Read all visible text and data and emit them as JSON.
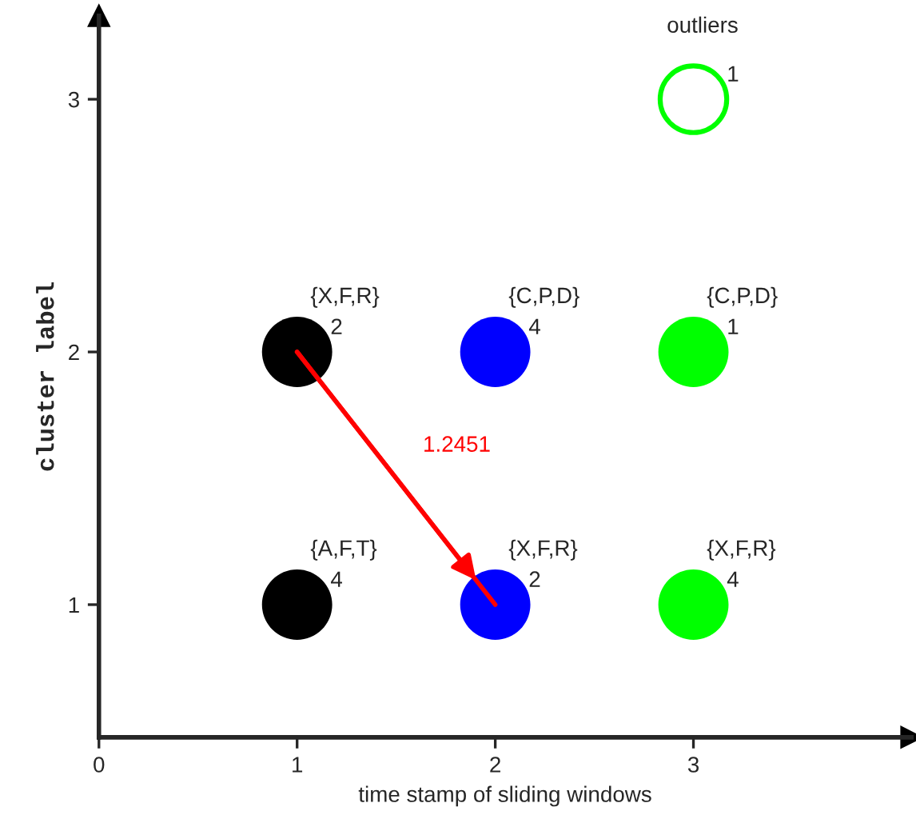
{
  "chart_data": {
    "type": "scatter",
    "xlabel": "time stamp of sliding windows",
    "ylabel": "cluster label",
    "xlim": [
      0,
      4.1
    ],
    "ylim": [
      0.475,
      3.33
    ],
    "xticks": [
      0,
      1,
      2,
      3
    ],
    "yticks": [
      1,
      2,
      3
    ],
    "grid": false,
    "legend": false,
    "marker": "circle",
    "series": [
      {
        "color": "#000000",
        "x": [
          1,
          1
        ],
        "values": [
          2,
          1
        ]
      },
      {
        "color": "#0000ff",
        "x": [
          2,
          2
        ],
        "values": [
          2,
          1
        ]
      },
      {
        "color": "#00ff00",
        "x": [
          3,
          3
        ],
        "values": [
          2,
          1
        ]
      },
      {
        "name": "outliers",
        "color": "#00ff00",
        "x": [
          3
        ],
        "values": [
          3
        ]
      },
      {
        "type": "line",
        "color": "#ff0000",
        "x": [
          1,
          2
        ],
        "values": [
          2,
          1
        ],
        "marker": "none"
      }
    ],
    "annotations": [
      {
        "text": "{X,F,R}",
        "x": 1,
        "y": 2
      },
      {
        "text": "2",
        "x": 1,
        "y": 2
      },
      {
        "text": "{C,P,D}",
        "x": 2,
        "y": 2
      },
      {
        "text": "4",
        "x": 2,
        "y": 2
      },
      {
        "text": "{C,P,D}",
        "x": 3,
        "y": 2
      },
      {
        "text": "1",
        "x": 3,
        "y": 2
      },
      {
        "text": "{A,F,T}",
        "x": 1,
        "y": 1
      },
      {
        "text": "4",
        "x": 1,
        "y": 1
      },
      {
        "text": "{X,F,R}",
        "x": 2,
        "y": 1
      },
      {
        "text": "2",
        "x": 2,
        "y": 1
      },
      {
        "text": "{X,F,R}",
        "x": 3,
        "y": 1
      },
      {
        "text": "4",
        "x": 3,
        "y": 1
      },
      {
        "text": "1",
        "x": 3,
        "y": 3
      },
      "1.2451"
    ]
  }
}
